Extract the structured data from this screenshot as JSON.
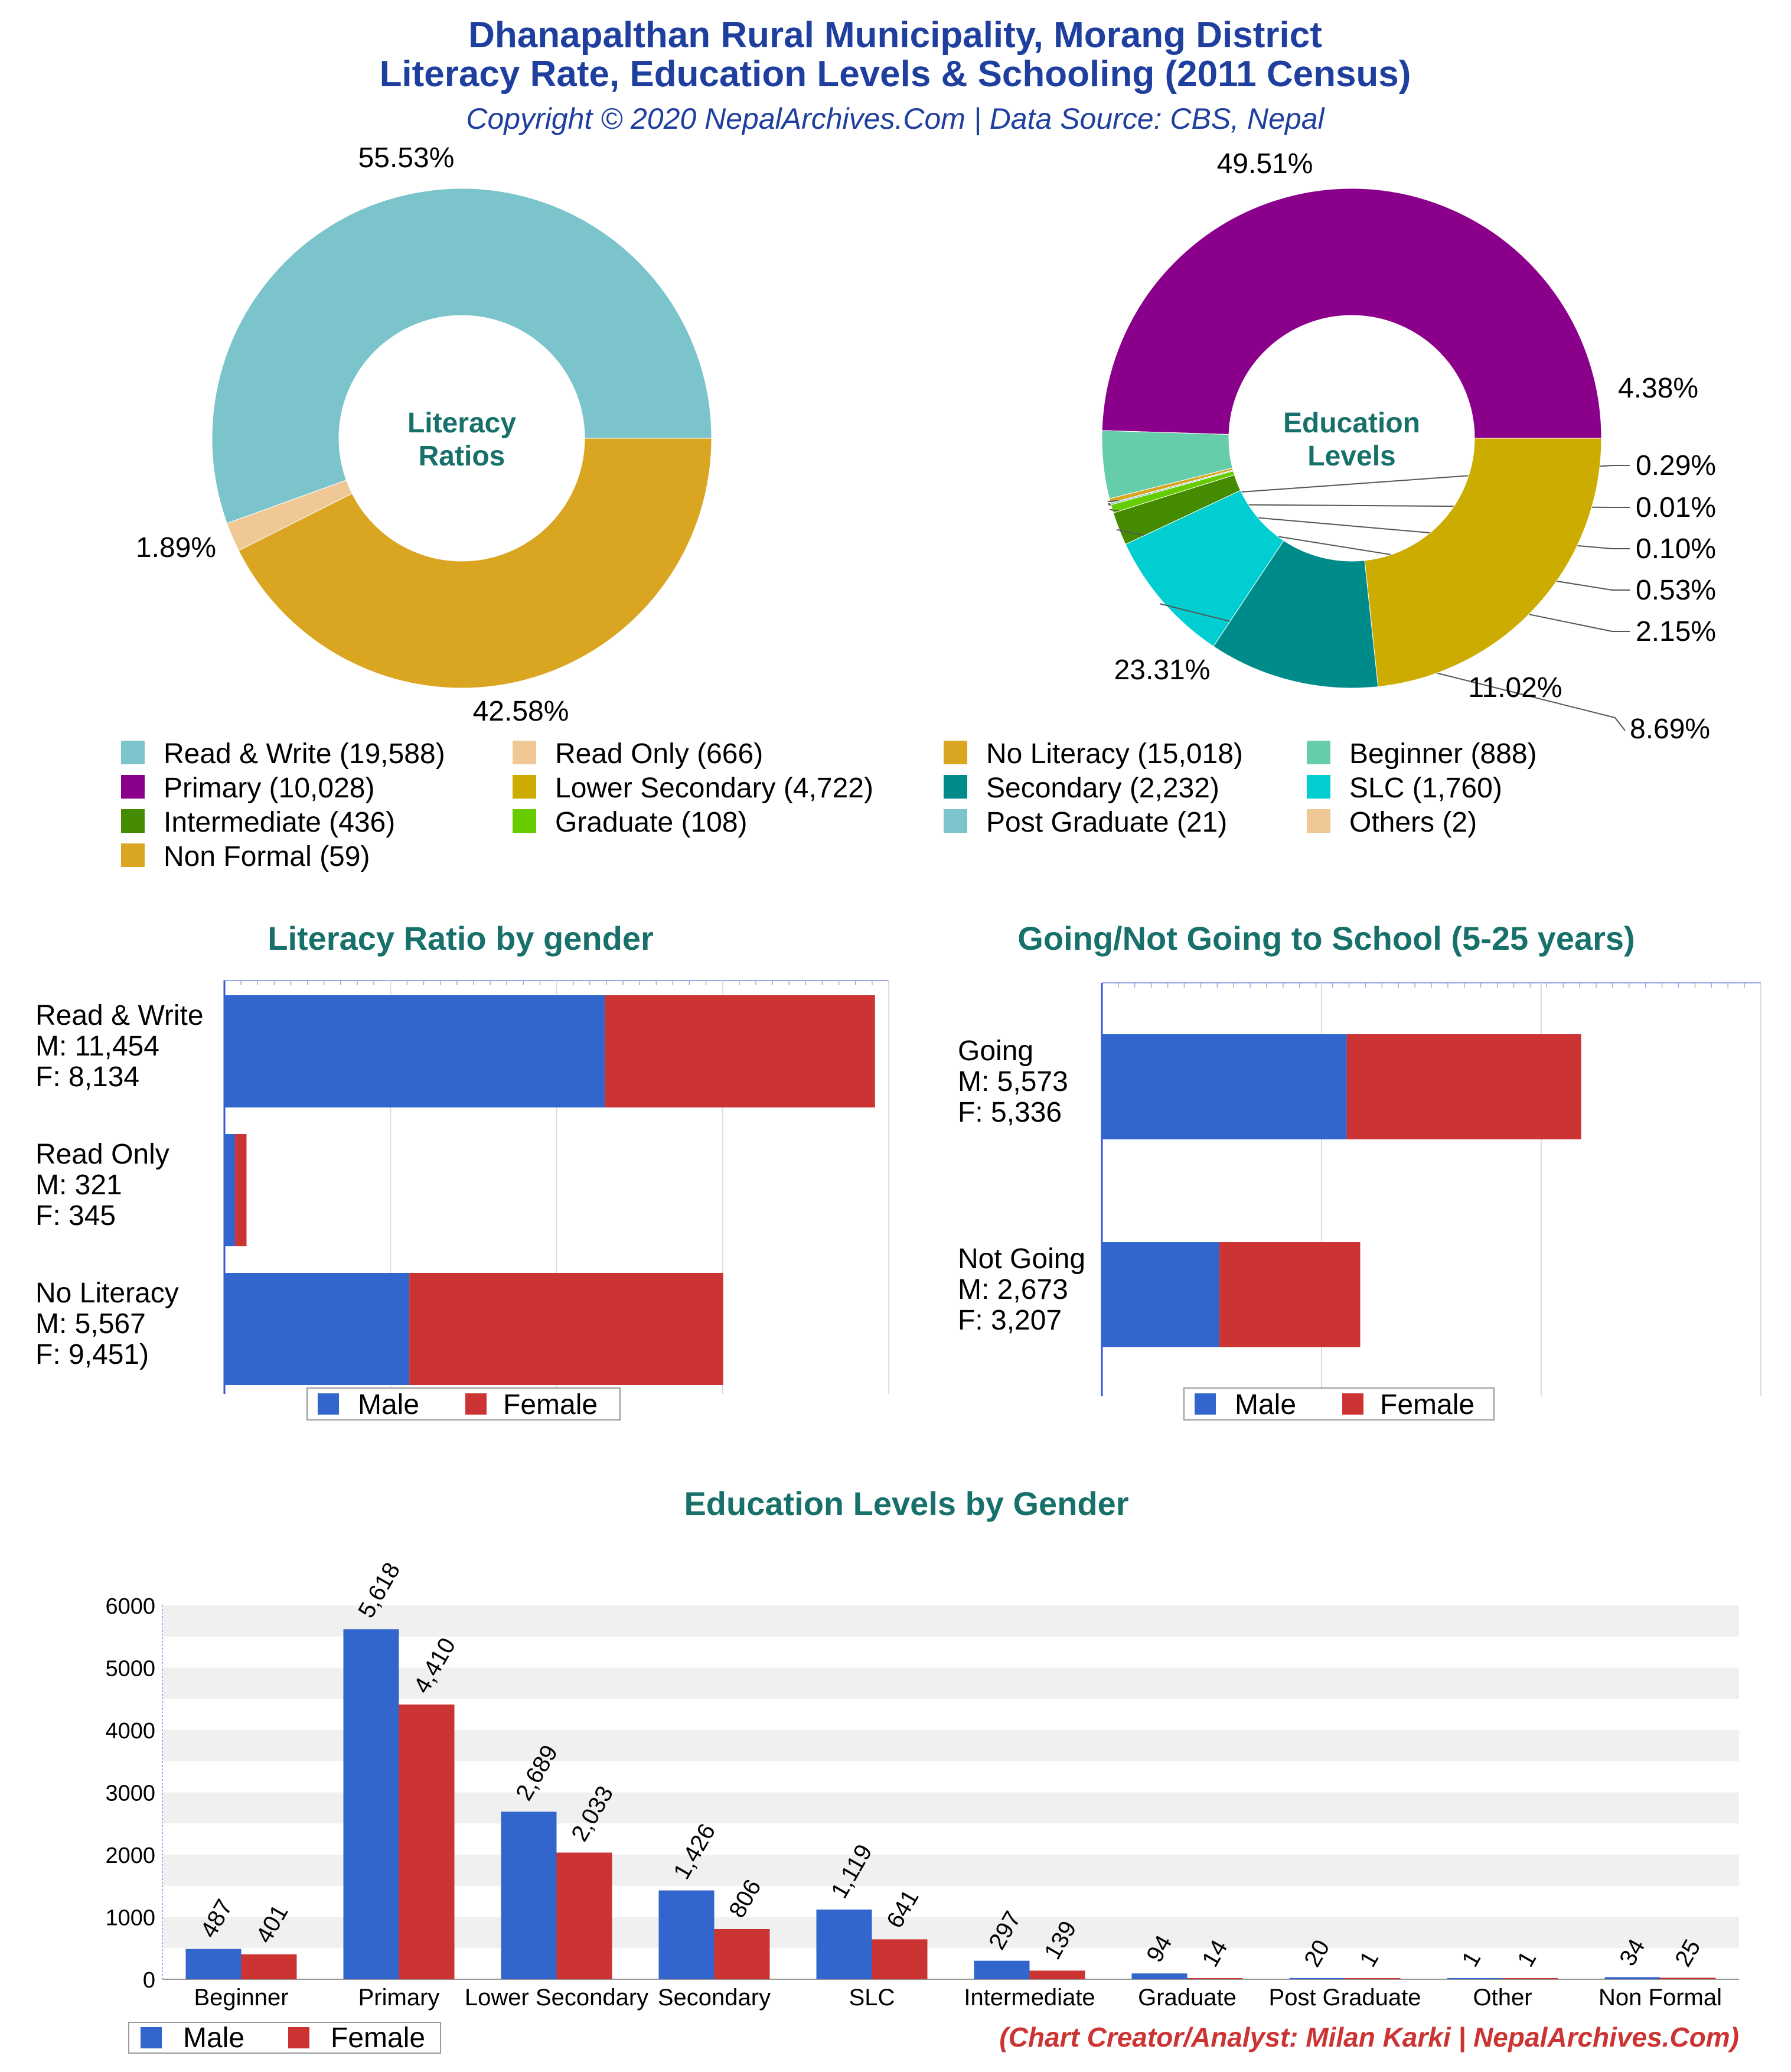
{
  "header": {
    "title_line1": "Dhanapalthan Rural Municipality, Morang District",
    "title_line2": "Literacy Rate, Education Levels & Schooling (2011 Census)",
    "copyright": "Copyright © 2020 NepalArchives.Com | Data Source: CBS, Nepal"
  },
  "colors": {
    "title": "#1f3f9f",
    "section_title": "#17706a",
    "male": "#3366cc",
    "female": "#cc3333",
    "credit": "#cc3333"
  },
  "legend": {
    "male": "Male",
    "female": "Female"
  },
  "credit": "(Chart Creator/Analyst: Milan Karki | NepalArchives.Com)",
  "chart_data": [
    {
      "type": "pie",
      "id": "literacy-ratios",
      "center_label_line1": "Literacy",
      "center_label_line2": "Ratios",
      "slices": [
        {
          "name": "Read & Write",
          "value": 19588,
          "percent_label": "55.53%",
          "color": "#7cc4cc"
        },
        {
          "name": "Read Only",
          "value": 666,
          "percent_label": "1.89%",
          "color": "#f0c896"
        },
        {
          "name": "No Literacy",
          "value": 15018,
          "percent_label": "42.58%",
          "color": "#daa520"
        }
      ]
    },
    {
      "type": "pie",
      "id": "education-levels",
      "center_label_line1": "Education",
      "center_label_line2": "Levels",
      "slices": [
        {
          "name": "Primary",
          "value": 10028,
          "percent_label": "49.51%",
          "color": "#8b008b"
        },
        {
          "name": "Beginner",
          "value": 888,
          "percent_label": "4.38%",
          "color": "#66cdaa"
        },
        {
          "name": "Non Formal",
          "value": 59,
          "percent_label": "0.29%",
          "color": "#daa520"
        },
        {
          "name": "Others",
          "value": 2,
          "percent_label": "0.01%",
          "color": "#f0c896"
        },
        {
          "name": "Post Graduate",
          "value": 21,
          "percent_label": "0.10%",
          "color": "#7cc4cc"
        },
        {
          "name": "Graduate",
          "value": 108,
          "percent_label": "0.53%",
          "color": "#66cc00"
        },
        {
          "name": "Intermediate",
          "value": 436,
          "percent_label": "2.15%",
          "color": "#458b00"
        },
        {
          "name": "SLC",
          "value": 1760,
          "percent_label": "8.69%",
          "color": "#00ced1"
        },
        {
          "name": "Secondary",
          "value": 2232,
          "percent_label": "11.02%",
          "color": "#008b8b"
        },
        {
          "name": "Lower Secondary",
          "value": 4722,
          "percent_label": "23.31%",
          "color": "#ccac00"
        }
      ]
    },
    {
      "type": "legend",
      "id": "pie-legend",
      "entries": [
        {
          "label": "Read & Write (19,588)",
          "color": "#7cc4cc"
        },
        {
          "label": "Read Only (666)",
          "color": "#f0c896"
        },
        {
          "label": "No Literacy (15,018)",
          "color": "#daa520"
        },
        {
          "label": "Beginner (888)",
          "color": "#66cdaa"
        },
        {
          "label": "Primary (10,028)",
          "color": "#8b008b"
        },
        {
          "label": "Lower Secondary (4,722)",
          "color": "#ccac00"
        },
        {
          "label": "Secondary (2,232)",
          "color": "#008b8b"
        },
        {
          "label": "SLC (1,760)",
          "color": "#00ced1"
        },
        {
          "label": "Intermediate (436)",
          "color": "#458b00"
        },
        {
          "label": "Graduate (108)",
          "color": "#66cc00"
        },
        {
          "label": "Post Graduate (21)",
          "color": "#7cc4cc"
        },
        {
          "label": "Others (2)",
          "color": "#f0c896"
        },
        {
          "label": "Non Formal (59)",
          "color": "#daa520"
        }
      ]
    },
    {
      "type": "bar",
      "orientation": "horizontal",
      "stacked": true,
      "id": "literacy-by-gender",
      "title": "Literacy Ratio by gender",
      "xlim": [
        0,
        20000
      ],
      "categories": [
        {
          "lines": [
            "Read & Write",
            "M: 11,454",
            "F: 8,134"
          ],
          "male": 11454,
          "female": 8134
        },
        {
          "lines": [
            "Read Only",
            "M: 321",
            "F: 345"
          ],
          "male": 321,
          "female": 345
        },
        {
          "lines": [
            "No Literacy",
            "M: 5,567",
            "F: 9,451)"
          ],
          "male": 5567,
          "female": 9451
        }
      ]
    },
    {
      "type": "bar",
      "orientation": "horizontal",
      "stacked": true,
      "id": "school-going",
      "title": "Going/Not Going to School (5-25 years)",
      "xlim": [
        0,
        15000
      ],
      "categories": [
        {
          "lines": [
            "Going",
            "M: 5,573",
            "F: 5,336"
          ],
          "male": 5573,
          "female": 5336
        },
        {
          "lines": [
            "Not Going",
            "M: 2,673",
            "F: 3,207"
          ],
          "male": 2673,
          "female": 3207
        }
      ]
    },
    {
      "type": "bar",
      "orientation": "vertical",
      "id": "education-by-gender",
      "title": "Education Levels by Gender",
      "ylim": [
        0,
        6000
      ],
      "yticks": [
        0,
        1000,
        2000,
        3000,
        4000,
        5000,
        6000
      ],
      "categories": [
        "Beginner",
        "Primary",
        "Lower Secondary",
        "Secondary",
        "SLC",
        "Intermediate",
        "Graduate",
        "Post Graduate",
        "Other",
        "Non Formal"
      ],
      "series": [
        {
          "name": "Male",
          "values": [
            487,
            5618,
            2689,
            1426,
            1119,
            297,
            94,
            20,
            1,
            34
          ],
          "labels": [
            "487",
            "5,618",
            "2,689",
            "1,426",
            "1,119",
            "297",
            "94",
            "20",
            "1",
            "34"
          ]
        },
        {
          "name": "Female",
          "values": [
            401,
            4410,
            2033,
            806,
            641,
            139,
            14,
            1,
            1,
            25
          ],
          "labels": [
            "401",
            "4,410",
            "2,033",
            "806",
            "641",
            "139",
            "14",
            "1",
            "1",
            "25"
          ]
        }
      ]
    }
  ]
}
